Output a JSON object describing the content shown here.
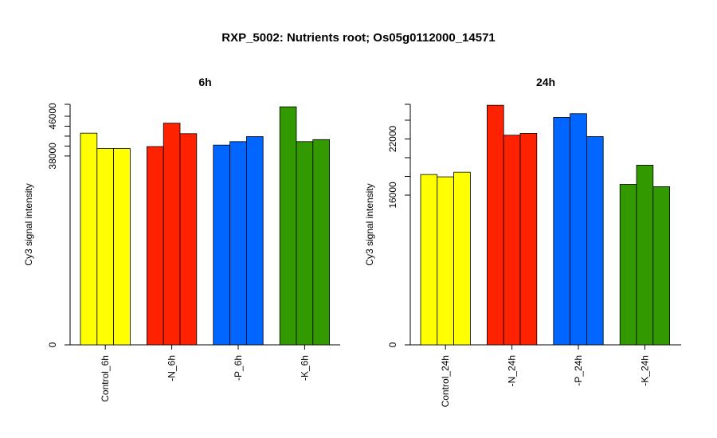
{
  "title": "RXP_5002: Nutrients root; Os05g0112000_14571",
  "colors": {
    "yellow": "#ffff00",
    "red": "#ff2200",
    "blue": "#0066ff",
    "green": "#339900"
  },
  "chart_data": [
    {
      "type": "bar",
      "title": "6h",
      "ylabel": "Cy3 signal intensity",
      "ylim": [
        0,
        48400
      ],
      "yticks": [
        0,
        38000,
        40000,
        42000,
        44000,
        46000
      ],
      "ytick_labels": [
        "0",
        "38000",
        "",
        "",
        "",
        "46000"
      ],
      "categories": [
        "Control_6h",
        "-N_6h",
        "-P_6h",
        "-K_6h"
      ],
      "group_colors": [
        "#ffff00",
        "#ff2200",
        "#0066ff",
        "#339900"
      ],
      "values": [
        [
          42600,
          39500,
          39500
        ],
        [
          39900,
          44600,
          42500
        ],
        [
          40200,
          40900,
          41900
        ],
        [
          47900,
          40900,
          41300
        ]
      ]
    },
    {
      "type": "bar",
      "title": "24h",
      "ylabel": "Cy3 signal intensity",
      "ylim": [
        0,
        25700
      ],
      "yticks": [
        0,
        16000,
        18000,
        20000,
        22000,
        24000
      ],
      "ytick_labels": [
        "0",
        "16000",
        "",
        "",
        "22000",
        ""
      ],
      "categories": [
        "Control_24h",
        "-N_24h",
        "-P_24h",
        "-K_24h"
      ],
      "group_colors": [
        "#ffff00",
        "#ff2200",
        "#0066ff",
        "#339900"
      ],
      "values": [
        [
          18200,
          17950,
          18450
        ],
        [
          25600,
          22400,
          22600
        ],
        [
          24300,
          24700,
          22250
        ],
        [
          17150,
          19200,
          16900
        ]
      ]
    }
  ]
}
